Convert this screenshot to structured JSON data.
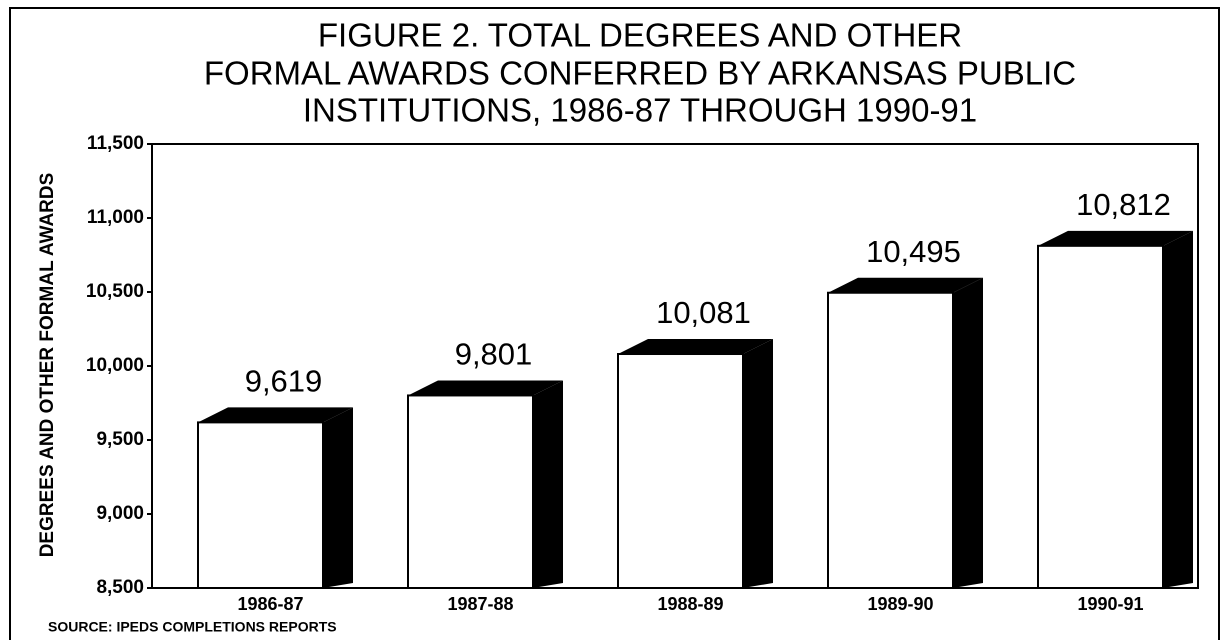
{
  "chart_data": {
    "type": "bar3d",
    "title": [
      "FIGURE 2. TOTAL DEGREES AND OTHER",
      "FORMAL AWARDS CONFERRED BY ARKANSAS PUBLIC",
      "INSTITUTIONS, 1986-87 THROUGH 1990-91"
    ],
    "y_label": "DEGREES AND OTHER FORMAL AWARDS",
    "source": "SOURCE: IPEDS COMPLETIONS REPORTS",
    "categories": [
      "1986-87",
      "1987-88",
      "1988-89",
      "1989-90",
      "1990-91"
    ],
    "values": [
      9619,
      9801,
      10081,
      10495,
      10812
    ],
    "value_labels": [
      "9,619",
      "9,801",
      "10,081",
      "10,495",
      "10,812"
    ],
    "color": "#ffffff",
    "side_color": "#000000",
    "ylim": [
      8500,
      11500
    ],
    "yticks": [
      {
        "value": 8500,
        "label": "8,500"
      },
      {
        "value": 9000,
        "label": "9,000"
      },
      {
        "value": 9500,
        "label": "9,500"
      },
      {
        "value": 10000,
        "label": "10,000"
      },
      {
        "value": 10500,
        "label": "10,500"
      },
      {
        "value": 11000,
        "label": "11,000"
      },
      {
        "value": 11500,
        "label": "11,500"
      }
    ],
    "grid": false
  }
}
